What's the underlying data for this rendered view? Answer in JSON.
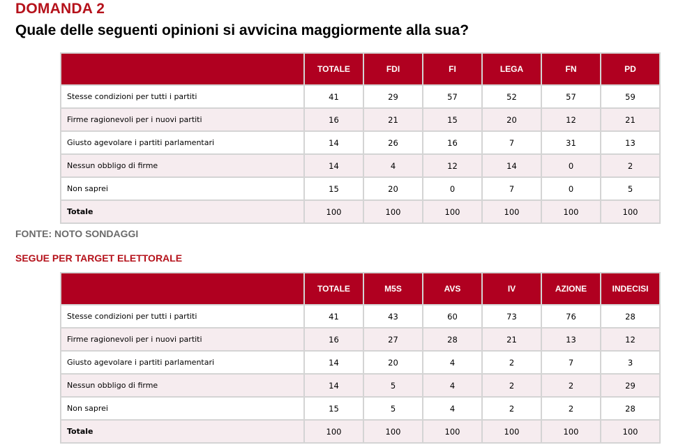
{
  "header": {
    "domanda": "DOMANDA 2",
    "question": "Quale delle seguenti opinioni si avvicina maggiormente alla sua?"
  },
  "table1": {
    "columns": [
      "TOTALE",
      "FDI",
      "FI",
      "LEGA",
      "FN",
      "PD"
    ],
    "rows": [
      {
        "label": "Stesse condizioni per tutti i partiti",
        "values": [
          "41",
          "29",
          "57",
          "52",
          "57",
          "59"
        ]
      },
      {
        "label": "Firme ragionevoli per i nuovi partiti",
        "values": [
          "16",
          "21",
          "15",
          "20",
          "12",
          "21"
        ]
      },
      {
        "label": "Giusto agevolare i partiti parlamentari",
        "values": [
          "14",
          "26",
          "16",
          "7",
          "31",
          "13"
        ]
      },
      {
        "label": "Nessun obbligo di firme",
        "values": [
          "14",
          "4",
          "12",
          "14",
          "0",
          "2"
        ]
      },
      {
        "label": "Non saprei",
        "values": [
          "15",
          "20",
          "0",
          "7",
          "0",
          "5"
        ]
      },
      {
        "label": "Totale",
        "values": [
          "100",
          "100",
          "100",
          "100",
          "100",
          "100"
        ]
      }
    ]
  },
  "source": "FONTE: NOTO SONDAGGI",
  "subheading": "SEGUE PER TARGET ELETTORALE",
  "table2": {
    "columns": [
      "TOTALE",
      "M5S",
      "AVS",
      "IV",
      "AZIONE",
      "INDECISI"
    ],
    "rows": [
      {
        "label": "Stesse condizioni per tutti i partiti",
        "values": [
          "41",
          "43",
          "60",
          "73",
          "76",
          "28"
        ]
      },
      {
        "label": "Firme ragionevoli per i nuovi partiti",
        "values": [
          "16",
          "27",
          "28",
          "21",
          "13",
          "12"
        ]
      },
      {
        "label": "Giusto agevolare i partiti parlamentari",
        "values": [
          "14",
          "20",
          "4",
          "2",
          "7",
          "3"
        ]
      },
      {
        "label": "Nessun obbligo di firme",
        "values": [
          "14",
          "5",
          "4",
          "2",
          "2",
          "29"
        ]
      },
      {
        "label": "Non saprei",
        "values": [
          "15",
          "5",
          "4",
          "2",
          "2",
          "28"
        ]
      },
      {
        "label": "Totale",
        "values": [
          "100",
          "100",
          "100",
          "100",
          "100",
          "100"
        ]
      }
    ]
  },
  "colors": {
    "accent_red": "#b00020",
    "title_red": "#b5121b",
    "row_alt": "#f6ecef",
    "source_gray": "#6b6b6b"
  }
}
